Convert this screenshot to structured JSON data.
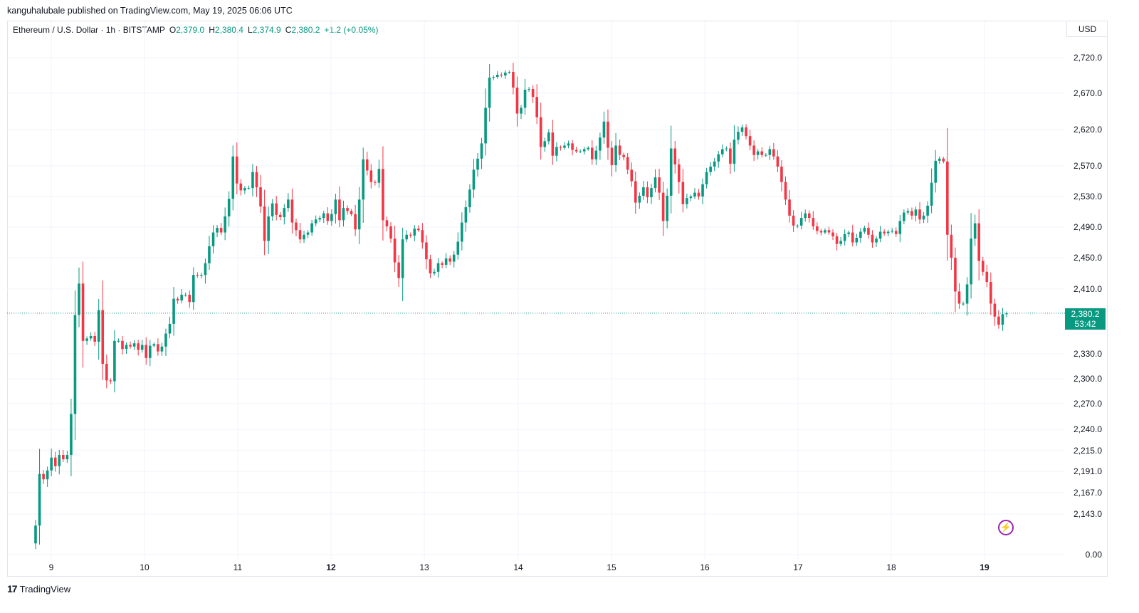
{
  "header": {
    "publisher_line": "kanguhalubale published on TradingView.com, May 19, 2025 06:06 UTC"
  },
  "legend": {
    "symbol": "Ethereum / U.S. Dollar · 1h · BITSTAMP",
    "o_label": "O",
    "o_value": "2,379.0",
    "h_label": "H",
    "h_value": "2,380.4",
    "l_label": "L",
    "l_value": "2,374.9",
    "c_label": "C",
    "c_value": "2,380.2",
    "change": "+1.2 (+0.05%)"
  },
  "currency": "USD",
  "price_label": {
    "price": "2,380.2",
    "countdown": "53:42"
  },
  "branding": {
    "logo_text": "TradingView",
    "logo_mark": "17"
  },
  "colors": {
    "up": "#089981",
    "down": "#f23645",
    "grid": "#f0f3fa",
    "price_line": "#089981",
    "accent": "#9c27b0"
  },
  "chart_data": {
    "type": "candlestick",
    "title": "Ethereum / U.S. Dollar · 1h · BITSTAMP",
    "y_scale": "log",
    "y_ticks": [
      {
        "value": 2720,
        "label": "2,720.0"
      },
      {
        "value": 2670,
        "label": "2,670.0"
      },
      {
        "value": 2620,
        "label": "2,620.0"
      },
      {
        "value": 2570,
        "label": "2,570.0"
      },
      {
        "value": 2530,
        "label": "2,530.0"
      },
      {
        "value": 2490,
        "label": "2,490.0"
      },
      {
        "value": 2450,
        "label": "2,450.0"
      },
      {
        "value": 2410,
        "label": "2,410.0"
      },
      {
        "value": 2330,
        "label": "2,330.0"
      },
      {
        "value": 2300,
        "label": "2,300.0"
      },
      {
        "value": 2270,
        "label": "2,270.0"
      },
      {
        "value": 2240,
        "label": "2,240.0"
      },
      {
        "value": 2215,
        "label": "2,215.0"
      },
      {
        "value": 2191,
        "label": "2,191.0"
      },
      {
        "value": 2167,
        "label": "2,167.0"
      },
      {
        "value": 2143,
        "label": "2,143.0"
      },
      {
        "value": 0,
        "label": "0.00"
      }
    ],
    "x_ticks": [
      {
        "day": 9,
        "label": "9",
        "bold": false
      },
      {
        "day": 10,
        "label": "10",
        "bold": false
      },
      {
        "day": 11,
        "label": "11",
        "bold": false
      },
      {
        "day": 12,
        "label": "12",
        "bold": true
      },
      {
        "day": 13,
        "label": "13",
        "bold": false
      },
      {
        "day": 14,
        "label": "14",
        "bold": false
      },
      {
        "day": 15,
        "label": "15",
        "bold": false
      },
      {
        "day": 16,
        "label": "16",
        "bold": false
      },
      {
        "day": 17,
        "label": "17",
        "bold": false
      },
      {
        "day": 18,
        "label": "18",
        "bold": false
      },
      {
        "day": 19,
        "label": "19",
        "bold": true
      }
    ],
    "last_price": 2380.2,
    "closes": [
      2130,
      2188,
      2182,
      2192,
      2207,
      2197,
      2210,
      2205,
      2210,
      2258,
      2378,
      2417,
      2346,
      2349,
      2352,
      2345,
      2384,
      2318,
      2298,
      2297,
      2346,
      2346,
      2336,
      2341,
      2339,
      2343,
      2335,
      2341,
      2325,
      2340,
      2342,
      2333,
      2339,
      2355,
      2367,
      2398,
      2396,
      2403,
      2403,
      2394,
      2428,
      2427,
      2428,
      2443,
      2465,
      2483,
      2489,
      2483,
      2504,
      2527,
      2583,
      2547,
      2538,
      2541,
      2541,
      2562,
      2542,
      2517,
      2472,
      2504,
      2521,
      2506,
      2503,
      2515,
      2526,
      2496,
      2486,
      2474,
      2480,
      2483,
      2495,
      2500,
      2502,
      2508,
      2498,
      2507,
      2526,
      2499,
      2515,
      2511,
      2507,
      2487,
      2526,
      2579,
      2564,
      2549,
      2548,
      2566,
      2499,
      2491,
      2475,
      2444,
      2424,
      2474,
      2480,
      2479,
      2488,
      2486,
      2470,
      2448,
      2430,
      2432,
      2443,
      2441,
      2449,
      2445,
      2454,
      2471,
      2496,
      2516,
      2539,
      2565,
      2580,
      2601,
      2650,
      2692,
      2693,
      2696,
      2695,
      2699,
      2700,
      2678,
      2642,
      2650,
      2675,
      2676,
      2665,
      2637,
      2596,
      2604,
      2616,
      2584,
      2596,
      2595,
      2598,
      2601,
      2592,
      2590,
      2590,
      2593,
      2595,
      2579,
      2591,
      2609,
      2631,
      2595,
      2571,
      2598,
      2585,
      2582,
      2565,
      2550,
      2522,
      2531,
      2542,
      2529,
      2541,
      2555,
      2535,
      2498,
      2531,
      2594,
      2572,
      2549,
      2520,
      2528,
      2530,
      2535,
      2530,
      2546,
      2562,
      2569,
      2576,
      2586,
      2593,
      2594,
      2573,
      2606,
      2617,
      2623,
      2611,
      2598,
      2585,
      2590,
      2585,
      2585,
      2593,
      2583,
      2569,
      2549,
      2526,
      2505,
      2492,
      2492,
      2502,
      2508,
      2502,
      2491,
      2485,
      2483,
      2486,
      2483,
      2478,
      2468,
      2472,
      2481,
      2483,
      2470,
      2476,
      2484,
      2489,
      2480,
      2470,
      2475,
      2484,
      2482,
      2484,
      2485,
      2481,
      2498,
      2509,
      2511,
      2505,
      2513,
      2500,
      2505,
      2518,
      2548,
      2577,
      2580,
      2576,
      2480,
      2450,
      2407,
      2392,
      2392,
      2416,
      2475,
      2495,
      2446,
      2432,
      2419,
      2392,
      2376,
      2366,
      2379,
      2380
    ],
    "source_time_range": "May 8 – May 19, 2025"
  }
}
